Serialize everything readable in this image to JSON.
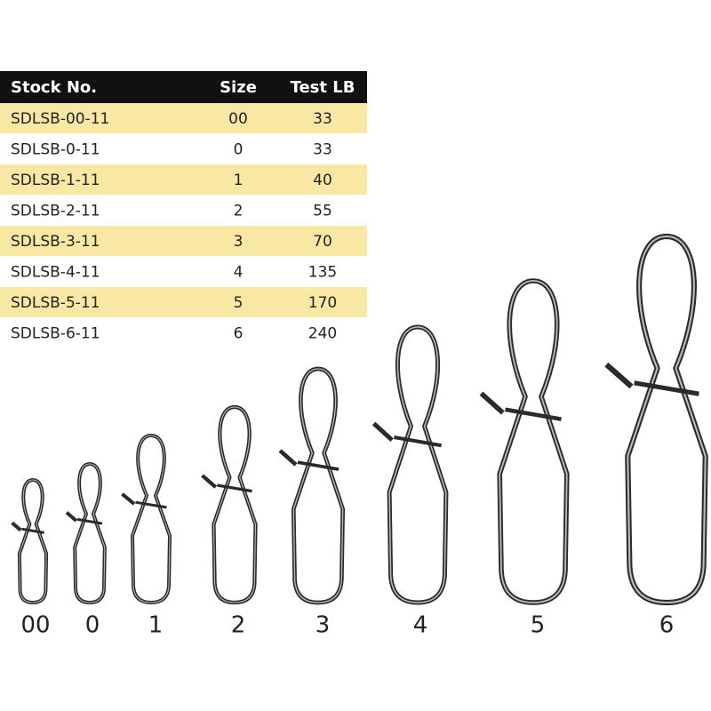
{
  "table": {
    "header": [
      "Stock No.",
      "Size",
      "Test LB"
    ],
    "rows": [
      [
        "SDLSB-00-11",
        "00",
        "33"
      ],
      [
        "SDLSB-0-11",
        "0",
        "33"
      ],
      [
        "SDLSB-1-11",
        "1",
        "40"
      ],
      [
        "SDLSB-2-11",
        "2",
        "55"
      ],
      [
        "SDLSB-3-11",
        "3",
        "70"
      ],
      [
        "SDLSB-4-11",
        "4",
        "135"
      ],
      [
        "SDLSB-5-11",
        "5",
        "170"
      ],
      [
        "SDLSB-6-11",
        "6",
        "240"
      ]
    ]
  },
  "snaps": {
    "labels": [
      "00",
      "0",
      "1",
      "2",
      "3",
      "4",
      "5",
      "6"
    ]
  }
}
